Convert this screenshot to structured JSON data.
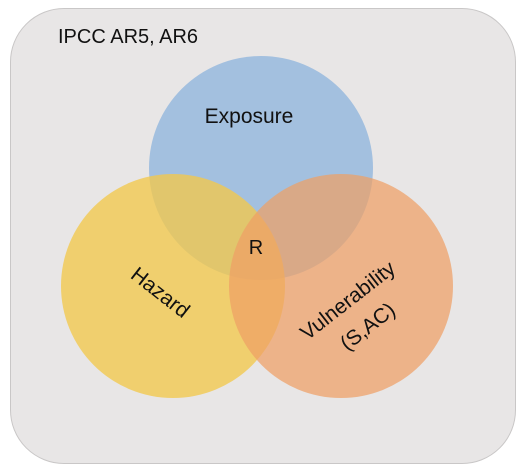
{
  "title": "IPCC AR5, AR6",
  "sets": [
    {
      "id": "exposure",
      "label": "Exposure",
      "color": "#8fb5dd"
    },
    {
      "id": "hazard",
      "label": "Hazard",
      "color": "#f2c84b"
    },
    {
      "id": "vulnerability",
      "label_line1": "Vulnerability",
      "label_line2": "(S,AC)",
      "color": "#ef9f65"
    }
  ],
  "intersection_label": "R"
}
